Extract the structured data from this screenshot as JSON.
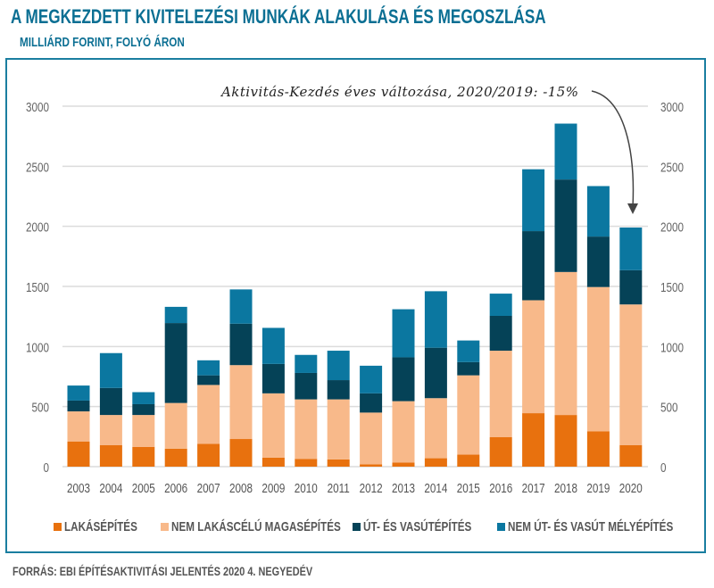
{
  "title": "A MEGKEZDETT KIVITELEZÉSI MUNKÁK ALAKULÁSA ÉS MEGOSZLÁSA",
  "subtitle": "MILLIÁRD FORINT, FOLYÓ ÁRON",
  "source": "FORRÁS: EBI ÉPÍTÉSAKTIVITÁSI JELENTÉS 2020 4. NEGYEDÉV",
  "chart_data": {
    "type": "bar",
    "stacked": true,
    "title": "A MEGKEZDETT KIVITELEZÉSI MUNKÁK ALAKULÁSA ÉS MEGOSZLÁSA",
    "subtitle": "MILLIÁRD FORINT, FOLYÓ ÁRON",
    "annotation": "Aktivitás-Kezdés éves változása, 2020/2019: -15%",
    "categories": [
      "2003",
      "2004",
      "2005",
      "2006",
      "2007",
      "2008",
      "2009",
      "2010",
      "2011",
      "2012",
      "2013",
      "2014",
      "2015",
      "2016",
      "2017",
      "2018",
      "2019",
      "2020"
    ],
    "ylim": [
      0,
      3000
    ],
    "yticks": [
      "0",
      "500",
      "1000",
      "1500",
      "2000",
      "2500",
      "3000"
    ],
    "ytick_values": [
      0,
      500,
      1000,
      1500,
      2000,
      2500,
      3000
    ],
    "y_axis_both_sides": true,
    "grid": true,
    "legend_placement": "bottom",
    "series": [
      {
        "name": "LAKÁSÉPÍTÉS",
        "color": "#e8710e",
        "values": [
          210,
          180,
          165,
          150,
          190,
          230,
          75,
          65,
          60,
          20,
          35,
          70,
          100,
          245,
          445,
          430,
          295,
          180
        ]
      },
      {
        "name": "NEM LAKÁSCÉLÚ MAGASÉPÍTÉS",
        "color": "#f8b98a",
        "values": [
          250,
          250,
          265,
          380,
          490,
          615,
          535,
          495,
          500,
          430,
          510,
          500,
          660,
          720,
          940,
          1190,
          1200,
          1170
        ]
      },
      {
        "name": "ÚT- ÉS VASÚTÉPÍTÉS",
        "color": "#054257",
        "values": [
          90,
          225,
          90,
          665,
          80,
          345,
          245,
          220,
          160,
          160,
          365,
          420,
          110,
          290,
          575,
          770,
          420,
          285
        ]
      },
      {
        "name": "NEM ÚT- ÉS VASÚT MÉLYÉPÍTÉS",
        "color": "#0b77a0",
        "values": [
          125,
          290,
          100,
          135,
          125,
          285,
          300,
          150,
          245,
          230,
          400,
          470,
          180,
          185,
          515,
          465,
          420,
          355
        ]
      }
    ]
  }
}
